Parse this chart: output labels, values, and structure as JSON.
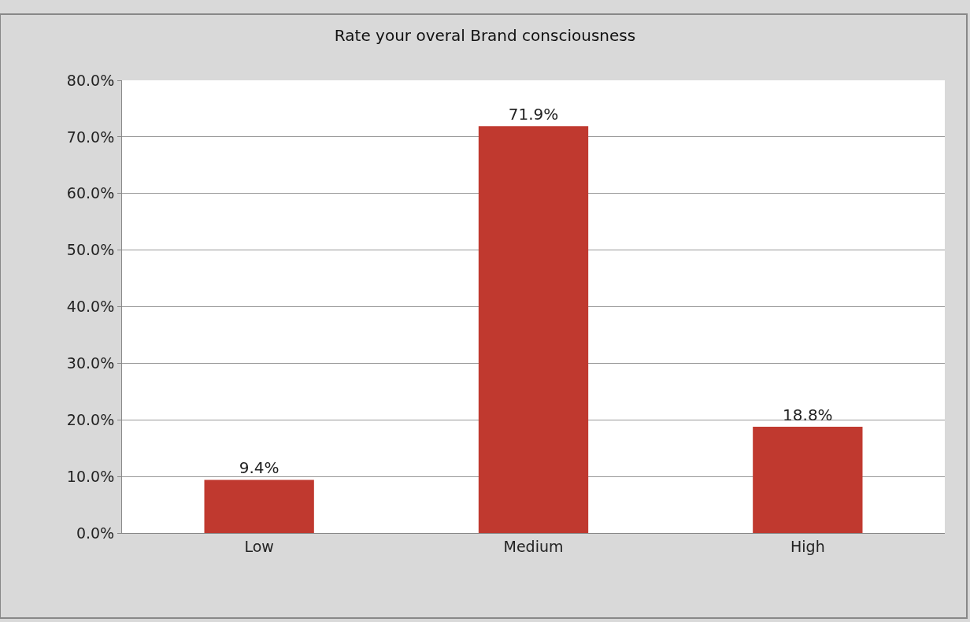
{
  "chart_data": {
    "type": "bar",
    "title": "Rate your overal Brand consciousness",
    "categories": [
      "Low",
      "Medium",
      "High"
    ],
    "values": [
      9.4,
      71.9,
      18.8
    ],
    "value_labels": [
      "9.4%",
      "71.9%",
      "18.8%"
    ],
    "color": "#c0392f",
    "ylim": [
      0,
      80
    ],
    "yticks": [
      {
        "value": 0,
        "label": "0.0%"
      },
      {
        "value": 10,
        "label": "10.0%"
      },
      {
        "value": 20,
        "label": "20.0%"
      },
      {
        "value": 30,
        "label": "30.0%"
      },
      {
        "value": 40,
        "label": "40.0%"
      },
      {
        "value": 50,
        "label": "50.0%"
      },
      {
        "value": 60,
        "label": "60.0%"
      },
      {
        "value": 70,
        "label": "70.0%"
      },
      {
        "value": 80,
        "label": "80.0%"
      }
    ],
    "grid": "y"
  }
}
